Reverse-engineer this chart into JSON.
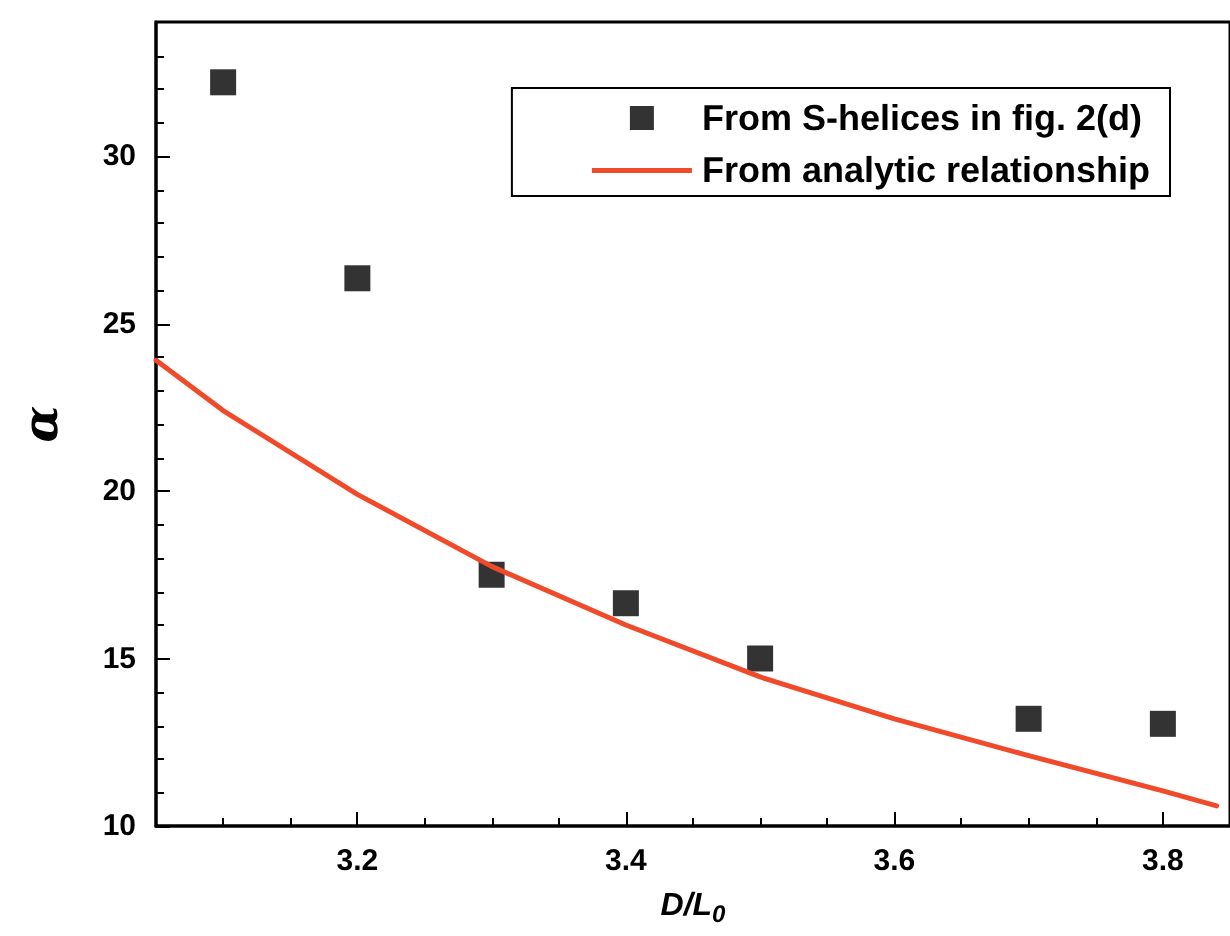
{
  "chart_data": {
    "type": "scatter",
    "xlabel": "D/L$_{0}$",
    "ylabel": "α",
    "xlim": [
      3.05,
      3.85
    ],
    "ylim": [
      10,
      34
    ],
    "xticks": [
      3.2,
      3.4,
      3.6,
      3.8
    ],
    "yticks": [
      10,
      15,
      20,
      25,
      30
    ],
    "grid": false,
    "legend": "top right",
    "marker": "square",
    "series": [
      {
        "name": "From S-helices in fig. 2(d)",
        "color": "#000000",
        "x": [
          3.1,
          3.2,
          3.3,
          3.4,
          3.5,
          3.7,
          3.8
        ],
        "values": [
          32.2,
          26.35,
          17.5,
          16.65,
          15.0,
          13.2,
          13.05
        ]
      },
      {
        "name": "From analytic relationship",
        "type": "line",
        "color": "#f04a2a",
        "marker": "none",
        "line_style": "solid",
        "x": [
          3.05,
          3.1,
          3.2,
          3.3,
          3.4,
          3.5,
          3.6,
          3.7,
          3.8,
          3.84
        ],
        "values": [
          23.9,
          22.4,
          19.9,
          17.75,
          16.0,
          14.45,
          13.2,
          12.1,
          11.05,
          10.6
        ]
      }
    ]
  }
}
